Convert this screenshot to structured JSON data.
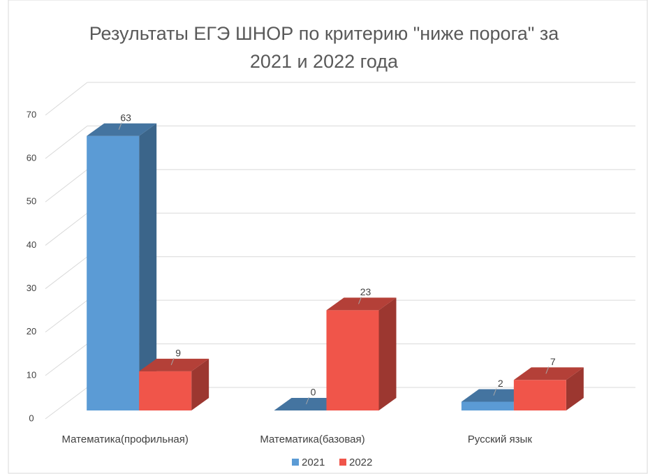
{
  "chart_data": {
    "type": "bar3d",
    "title": "Результаты ЕГЭ ШНОР по критерию \"ниже порога\" за 2021 и 2022 года",
    "categories": [
      "Математика(профильная)",
      "Математика(базовая)",
      "Русский язык"
    ],
    "series": [
      {
        "name": "2021",
        "color": "#5b9bd5",
        "values": [
          63,
          0,
          2
        ]
      },
      {
        "name": "2022",
        "color": "#f0554a",
        "values": [
          9,
          23,
          7
        ]
      }
    ],
    "ylim": [
      0,
      70
    ],
    "yticks": [
      0,
      10,
      20,
      30,
      40,
      50,
      60,
      70
    ],
    "grid": true,
    "legend": "bottom"
  }
}
